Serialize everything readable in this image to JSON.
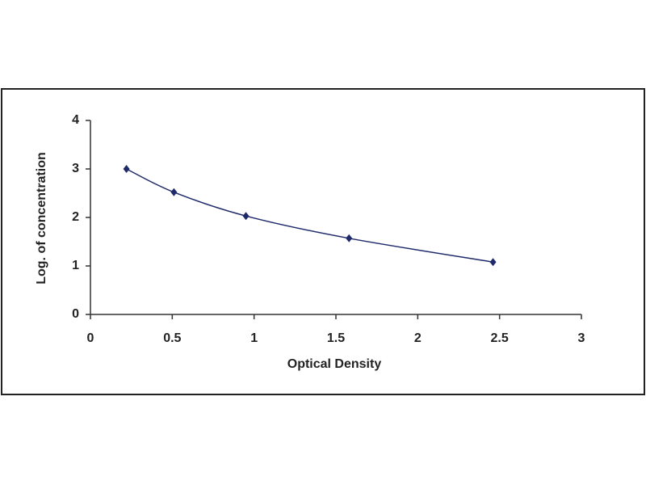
{
  "chart_data": {
    "type": "line",
    "x_label": "Optical Density",
    "y_label": "Log. of concentration",
    "x": [
      0.22,
      0.51,
      0.95,
      1.58,
      2.46
    ],
    "values": [
      3.0,
      2.52,
      2.03,
      1.57,
      1.08
    ],
    "color": "#1f2a6b",
    "smooth": true,
    "markers": true,
    "xlim": [
      0,
      3
    ],
    "xticks": [
      0,
      0.5,
      1,
      1.5,
      2,
      2.5,
      3
    ],
    "ylim": [
      0,
      4
    ],
    "yticks": [
      0,
      1,
      2,
      3,
      4
    ],
    "grid": false
  }
}
